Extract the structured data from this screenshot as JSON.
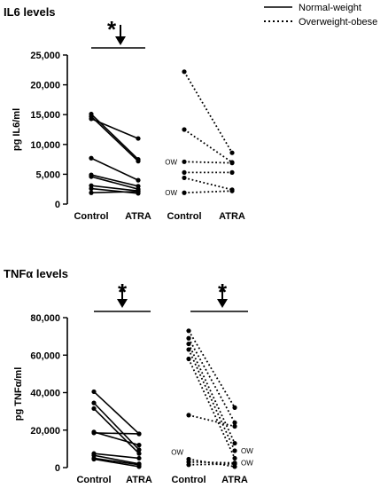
{
  "legend": {
    "normal_label": "Normal-weight",
    "overweight_label": "Overweight-obese"
  },
  "chart_data": [
    {
      "type": "line",
      "title": "IL6 levels",
      "ylabel": "pg IL6/ml",
      "ylim": [
        0,
        25000
      ],
      "yticks": [
        "0",
        "5,000",
        "10,000",
        "15,000",
        "20,000",
        "25,000"
      ],
      "categories": [
        "Control",
        "ATRA",
        "Control",
        "ATRA"
      ],
      "significance": "*",
      "normal_weight": [
        [
          15100,
          7500
        ],
        [
          14700,
          7200
        ],
        [
          14300,
          11000
        ],
        [
          7700,
          4000
        ],
        [
          4900,
          3000
        ],
        [
          4600,
          2500
        ],
        [
          3100,
          2200
        ],
        [
          2600,
          1800
        ],
        [
          1900,
          2100
        ]
      ],
      "overweight_obese": [
        [
          22200,
          8600
        ],
        [
          12500,
          7000
        ],
        [
          7100,
          6900
        ],
        [
          5300,
          5300
        ],
        [
          4400,
          2400
        ],
        [
          1900,
          2200
        ]
      ],
      "annotations": [
        {
          "text": "OW",
          "value": 7100
        },
        {
          "text": "OW",
          "value": 1900
        }
      ]
    },
    {
      "type": "line",
      "title": "TNFα levels",
      "ylabel": "pg TNFα/ml",
      "ylim": [
        0,
        80000
      ],
      "yticks": [
        "0",
        "20,000",
        "40,000",
        "60,000",
        "80,000"
      ],
      "categories": [
        "Control",
        "ATRA",
        "Control",
        "ATRA"
      ],
      "significance_left": "*",
      "significance_right": "*",
      "normal_weight": [
        [
          40500,
          18000
        ],
        [
          34500,
          9500
        ],
        [
          31500,
          7500
        ],
        [
          19000,
          12000
        ],
        [
          18500,
          18000
        ],
        [
          7500,
          5000
        ],
        [
          6500,
          2000
        ],
        [
          5000,
          1500
        ],
        [
          4500,
          500
        ]
      ],
      "overweight_obese": [
        [
          73000,
          32000
        ],
        [
          69000,
          24000
        ],
        [
          66000,
          13000
        ],
        [
          63000,
          9000
        ],
        [
          58000,
          5000
        ],
        [
          28000,
          22000
        ],
        [
          4500,
          500
        ],
        [
          3000,
          2500
        ],
        [
          1500,
          2000
        ]
      ],
      "annotations": [
        {
          "text": "OW",
          "value": 9000
        },
        {
          "text": "OW",
          "value": 2500
        },
        {
          "text": "OW",
          "value": 4500
        }
      ]
    }
  ]
}
